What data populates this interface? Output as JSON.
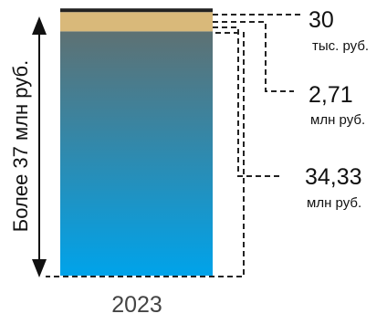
{
  "chart_data": {
    "type": "bar",
    "stacked": true,
    "categories": [
      "2023"
    ],
    "series": [
      {
        "values": [
          34.33
        ],
        "value_label": "34,33",
        "unit_label": "млн руб.",
        "color_top": "#5e7173",
        "color_bottom": "#00a3ea"
      },
      {
        "values": [
          2.71
        ],
        "value_label": "2,71",
        "unit_label": "млн руб.",
        "color": "#d9b97a"
      },
      {
        "values": [
          0.03
        ],
        "value_label": "30",
        "unit_label": "тыс. руб.",
        "color": "#222222"
      }
    ],
    "total_label": "Более 37 млн руб.",
    "ylim": [
      0,
      37.07
    ],
    "grid": false,
    "legend": "none"
  }
}
